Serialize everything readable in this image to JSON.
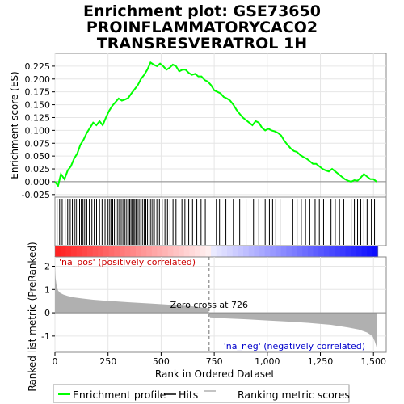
{
  "chart_data": {
    "type": "line",
    "title": [
      "Enrichment plot: GSE73650",
      "PROINFLAMMATORYCACO2",
      "TRANSRESVERATROL 1H"
    ],
    "xlabel": "Rank in Ordered Dataset",
    "xlim": [
      0,
      1560
    ],
    "x_ticks": [
      0,
      250,
      500,
      750,
      1000,
      1250,
      1500
    ],
    "x_tick_labels": [
      "0",
      "250",
      "500",
      "750",
      "1,000",
      "1,250",
      "1,500"
    ],
    "es_panel": {
      "ylabel": "Enrichment score (ES)",
      "ylim": [
        -0.03,
        0.25
      ],
      "y_ticks": [
        -0.025,
        0.0,
        0.025,
        0.05,
        0.075,
        0.1,
        0.125,
        0.15,
        0.175,
        0.2,
        0.225
      ],
      "y_tick_labels": [
        "-0.025",
        "0.000",
        "0.025",
        "0.050",
        "0.075",
        "0.100",
        "0.125",
        "0.150",
        "0.175",
        "0.200",
        "0.225"
      ],
      "color": "#00ff00",
      "series": [
        {
          "x": [
            0,
            15,
            28,
            45,
            60,
            75,
            90,
            105,
            120,
            135,
            150,
            165,
            180,
            195,
            210,
            225,
            240,
            255,
            270,
            285,
            300,
            315,
            330,
            345,
            360,
            375,
            390,
            405,
            420,
            435,
            450,
            465,
            480,
            495,
            510,
            525,
            540,
            555,
            570,
            585,
            600,
            615,
            630,
            645,
            660,
            675,
            690,
            705,
            720,
            735,
            750,
            765,
            780,
            795,
            810,
            825,
            840,
            855,
            870,
            885,
            900,
            915,
            930,
            945,
            960,
            975,
            990,
            1005,
            1020,
            1035,
            1050,
            1065,
            1080,
            1095,
            1110,
            1125,
            1140,
            1155,
            1170,
            1185,
            1200,
            1215,
            1230,
            1245,
            1260,
            1275,
            1290,
            1305,
            1320,
            1335,
            1350,
            1365,
            1380,
            1395,
            1410,
            1425,
            1440,
            1455,
            1470,
            1485,
            1500,
            1515
          ],
          "y": [
            0.0,
            -0.008,
            0.015,
            0.005,
            0.022,
            0.03,
            0.045,
            0.055,
            0.072,
            0.082,
            0.095,
            0.105,
            0.115,
            0.11,
            0.118,
            0.11,
            0.125,
            0.138,
            0.148,
            0.155,
            0.162,
            0.158,
            0.16,
            0.163,
            0.172,
            0.18,
            0.188,
            0.2,
            0.208,
            0.218,
            0.232,
            0.228,
            0.225,
            0.23,
            0.225,
            0.218,
            0.222,
            0.228,
            0.225,
            0.215,
            0.218,
            0.218,
            0.212,
            0.208,
            0.21,
            0.205,
            0.205,
            0.198,
            0.195,
            0.188,
            0.178,
            0.175,
            0.172,
            0.165,
            0.162,
            0.158,
            0.15,
            0.14,
            0.132,
            0.125,
            0.12,
            0.115,
            0.11,
            0.118,
            0.115,
            0.105,
            0.1,
            0.103,
            0.1,
            0.098,
            0.095,
            0.09,
            0.08,
            0.072,
            0.065,
            0.06,
            0.058,
            0.052,
            0.048,
            0.045,
            0.04,
            0.035,
            0.035,
            0.03,
            0.025,
            0.022,
            0.02,
            0.025,
            0.02,
            0.015,
            0.01,
            0.005,
            0.002,
            0.0,
            0.003,
            0.002,
            0.008,
            0.015,
            0.01,
            0.005,
            0.005,
            0.0
          ]
        }
      ]
    },
    "hits": [
      10,
      22,
      34,
      48,
      60,
      72,
      82,
      92,
      100,
      108,
      116,
      124,
      132,
      140,
      150,
      162,
      174,
      185,
      196,
      210,
      222,
      236,
      250,
      258,
      265,
      272,
      280,
      288,
      296,
      304,
      312,
      320,
      330,
      338,
      346,
      352,
      358,
      364,
      370,
      376,
      382,
      388,
      396,
      404,
      412,
      420,
      428,
      436,
      444,
      452,
      460,
      468,
      480,
      492,
      505,
      518,
      530,
      542,
      556,
      570,
      584,
      598,
      612,
      630,
      648,
      668,
      688,
      708,
      760,
      775,
      805,
      820,
      840,
      870,
      900,
      935,
      960,
      990,
      1010,
      1025,
      1040,
      1060,
      1120,
      1140,
      1160,
      1180,
      1200,
      1225,
      1245,
      1265,
      1300,
      1320,
      1340,
      1360,
      1395,
      1410,
      1425,
      1440,
      1455,
      1470,
      1490,
      1505
    ],
    "metric_panel": {
      "ylabel": "Ranked list metric (PreRanked)",
      "ylim": [
        -1.7,
        2.4
      ],
      "y_ticks": [
        -1,
        0,
        1,
        2
      ],
      "y_tick_labels": [
        "-1",
        "0",
        "1",
        "2"
      ],
      "fill_color": "#b0b0b0",
      "curve": {
        "x": [
          0,
          3,
          8,
          15,
          25,
          40,
          60,
          90,
          130,
          180,
          250,
          350,
          450,
          550,
          650,
          720,
          726,
          730,
          800,
          900,
          1000,
          1100,
          1200,
          1300,
          1380,
          1430,
          1470,
          1495,
          1505,
          1512,
          1518
        ],
        "y": [
          2.1,
          1.5,
          1.15,
          0.95,
          0.85,
          0.78,
          0.72,
          0.66,
          0.61,
          0.56,
          0.51,
          0.45,
          0.4,
          0.34,
          0.27,
          0.2,
          0.0,
          -0.2,
          -0.24,
          -0.28,
          -0.33,
          -0.38,
          -0.44,
          -0.52,
          -0.63,
          -0.72,
          -0.85,
          -1.0,
          -1.2,
          -1.4,
          -1.65
        ]
      },
      "zero_cross_rank": 726,
      "zero_cross_label": "Zero cross at 726",
      "pos_label": "'na_pos' (positively correlated)",
      "neg_label": "'na_neg' (negatively correlated)",
      "pos_color": "#cc0000",
      "neg_color": "#0000cc"
    },
    "legend": {
      "placement": "bottom",
      "entries": [
        {
          "label": "Enrichment profile",
          "color": "#00ff00"
        },
        {
          "label": "Hits",
          "color": "#000000"
        },
        {
          "label": "Ranking metric scores",
          "color": "#b0b0b0"
        }
      ]
    },
    "grid": true
  }
}
